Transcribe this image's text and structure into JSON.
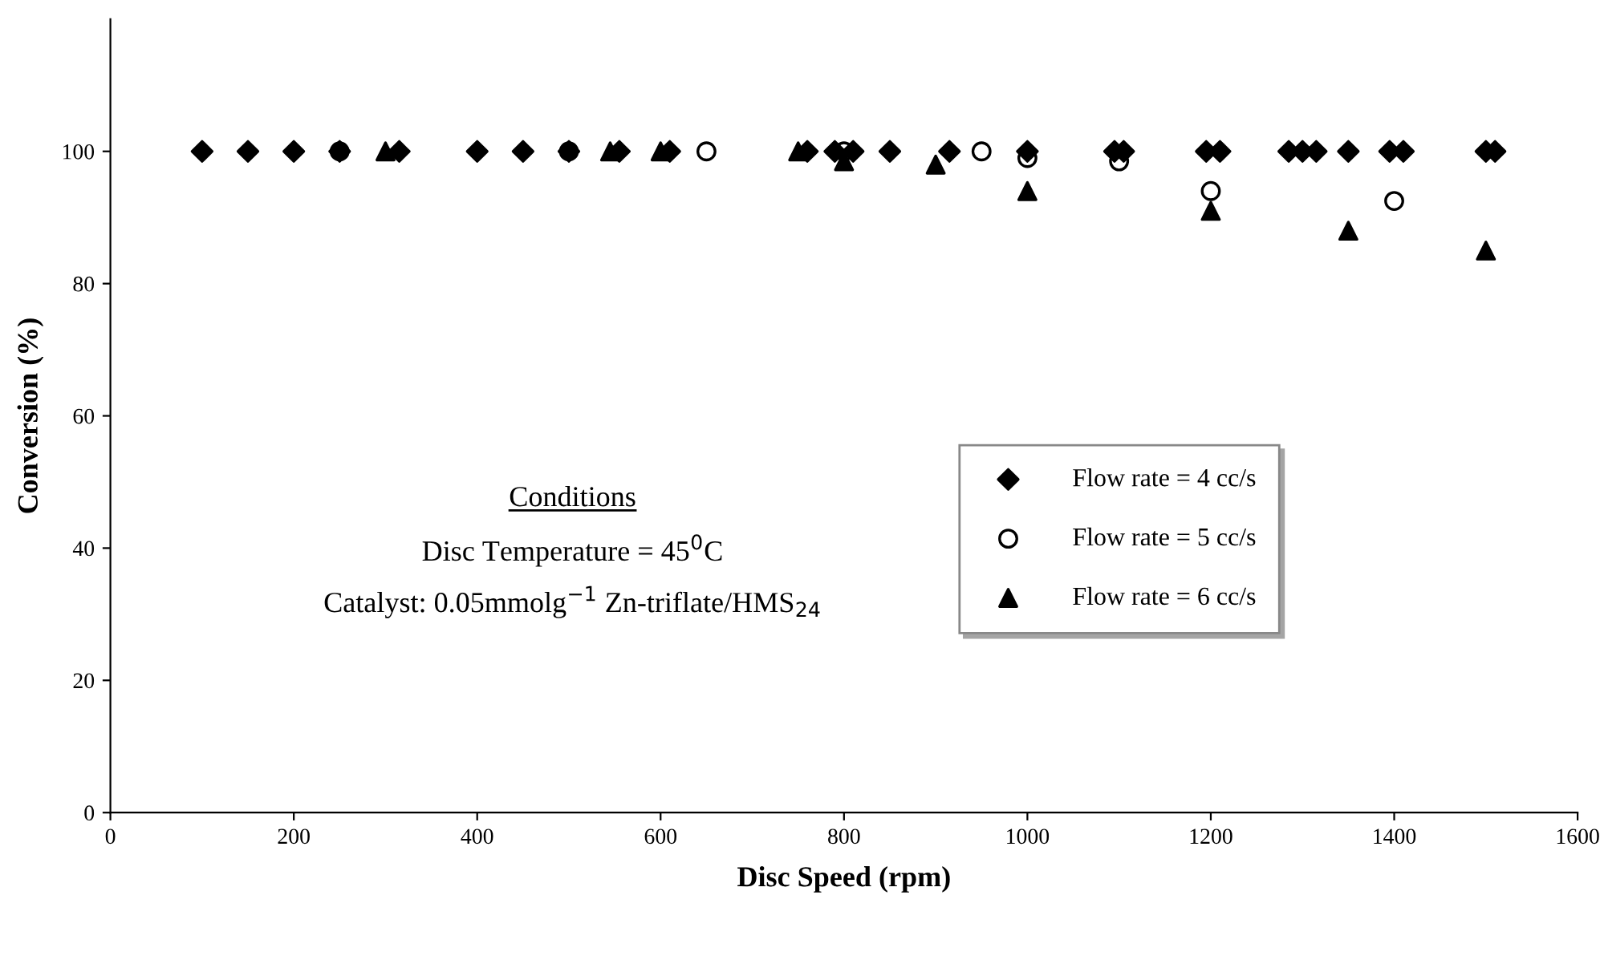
{
  "chart_data": {
    "type": "scatter",
    "xlabel": "Disc Speed (rpm)",
    "ylabel": "Conversion (%)",
    "annotations": [
      "Conditions",
      "Disc Temperature = 45$^{0}$C",
      "Catalyst: 0.05mmolg$^{−1}$ Zn-triflate/HMS$_{24}$"
    ],
    "series": [
      {
        "name": "Flow rate = 4 cc/s",
        "color": "#000000",
        "marker": "diamond",
        "x": [
          100,
          150,
          200,
          250,
          315,
          400,
          450,
          500,
          555,
          610,
          760,
          790,
          810,
          850,
          915,
          1000,
          1095,
          1105,
          1195,
          1210,
          1285,
          1300,
          1315,
          1350,
          1395,
          1410,
          1500,
          1510
        ],
        "values": [
          100,
          100,
          100,
          100,
          100,
          100,
          100,
          100,
          100,
          100,
          100,
          100,
          100,
          100,
          100,
          100,
          100,
          100,
          100,
          100,
          100,
          100,
          100,
          100,
          100,
          100,
          100,
          100
        ]
      },
      {
        "name": "Flow rate = 5 cc/s",
        "color": "#000000",
        "marker": "circle",
        "x": [
          250,
          500,
          650,
          800,
          950,
          1000,
          1100,
          1200,
          1400
        ],
        "values": [
          100,
          100,
          100,
          100,
          100,
          99,
          98.5,
          94,
          92.5
        ]
      },
      {
        "name": "Flow rate = 6 cc/s",
        "color": "#000000",
        "marker": "triangle",
        "x": [
          300,
          545,
          600,
          750,
          800,
          900,
          1000,
          1200,
          1350,
          1500
        ],
        "values": [
          100,
          100,
          100,
          100,
          98.5,
          98,
          94,
          91,
          88,
          85
        ]
      }
    ],
    "xlim": [
      0,
      1600
    ],
    "xticks": [
      0,
      200,
      400,
      600,
      800,
      1000,
      1200,
      1400,
      1600
    ],
    "ylim": [
      0,
      120
    ],
    "yticks": [
      0,
      20,
      40,
      60,
      80,
      100
    ],
    "grid": false,
    "legend": "right"
  }
}
